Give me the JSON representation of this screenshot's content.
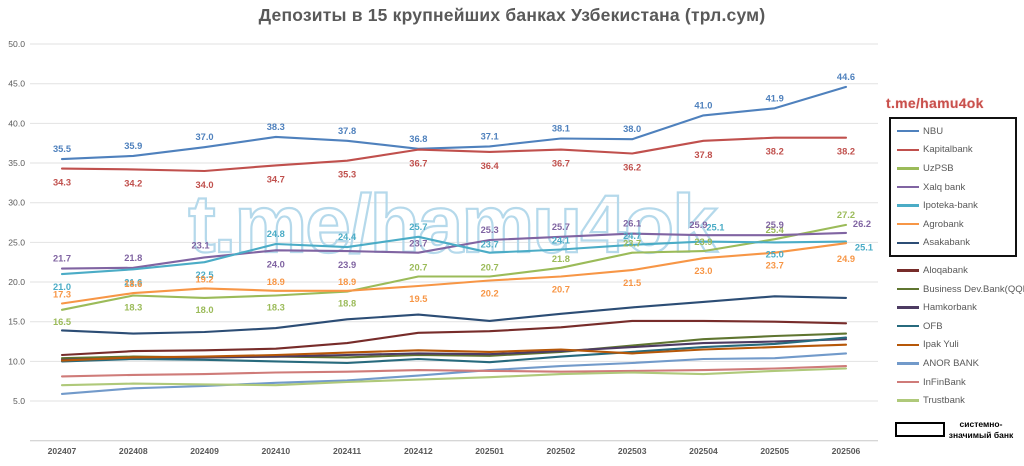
{
  "title": "Депозиты в 15 крупнейших банках Узбекистана (трл.сум)",
  "watermark_center": "t.me/hamu4ok",
  "watermark_corner": "t.me/hamu4ok",
  "systemic_note": {
    "line1": "системно-",
    "line2": "значимый банк"
  },
  "chart_data": {
    "type": "line",
    "title": "Депозиты в 15 крупнейших банках Узбекистана (трл.сум)",
    "xlabel": "",
    "ylabel": "",
    "x_categories": [
      "202407",
      "202408",
      "202409",
      "202410",
      "202411",
      "202412",
      "202501",
      "202502",
      "202503",
      "202504",
      "202505",
      "202506"
    ],
    "ylim": [
      0,
      50
    ],
    "y_ticks": [
      5.0,
      10.0,
      15.0,
      20.0,
      25.0,
      30.0,
      35.0,
      40.0,
      45.0,
      50.0
    ],
    "grid": "horizontal",
    "legend_position": "right",
    "systemic_group_label": "системно-значимый банк",
    "series": [
      {
        "name": "NBU",
        "color": "#4F81BD",
        "systemic": true,
        "labeled": true,
        "values": [
          35.5,
          35.9,
          37.0,
          38.3,
          37.8,
          36.8,
          37.1,
          38.1,
          38.0,
          41.0,
          41.9,
          44.6
        ],
        "label_dy": [
          -7,
          -7,
          -7,
          -7,
          -7,
          -7,
          -7,
          -7,
          -7,
          -7,
          -7,
          -7
        ]
      },
      {
        "name": "Kapitalbank",
        "color": "#C0504D",
        "systemic": true,
        "labeled": true,
        "values": [
          34.3,
          34.2,
          34.0,
          34.7,
          35.3,
          36.7,
          36.4,
          36.7,
          36.2,
          37.8,
          38.2,
          38.2
        ],
        "label_dy": [
          14,
          14,
          14,
          14,
          14,
          14,
          14,
          14,
          14,
          14,
          14,
          14
        ]
      },
      {
        "name": "UzPSB",
        "color": "#9BBB59",
        "systemic": true,
        "labeled": true,
        "values": [
          16.5,
          18.3,
          18.0,
          18.3,
          18.8,
          20.7,
          20.7,
          21.8,
          23.7,
          23.9,
          25.4,
          27.2
        ],
        "label_dy": [
          12,
          12,
          12,
          12,
          12,
          -6,
          -6,
          -6,
          -6,
          -6,
          -6,
          -7
        ]
      },
      {
        "name": "Xalq bank",
        "color": "#8064A2",
        "systemic": true,
        "labeled": true,
        "values": [
          21.7,
          21.8,
          23.1,
          24.0,
          23.9,
          23.7,
          25.3,
          25.7,
          26.1,
          25.9,
          25.9,
          26.2
        ],
        "label_dy": [
          -7,
          -7,
          -9,
          14,
          14,
          -6,
          -7,
          -7,
          -7,
          -7,
          -7,
          -6
        ],
        "label_dx": [
          0,
          0,
          -4,
          0,
          0,
          0,
          0,
          0,
          0,
          -5,
          0,
          16
        ]
      },
      {
        "name": "Ipoteka-bank",
        "color": "#4BACC6",
        "systemic": true,
        "labeled": true,
        "values": [
          21.0,
          21.6,
          22.5,
          24.8,
          24.4,
          25.7,
          23.7,
          24.1,
          24.7,
          25.1,
          25.0,
          25.1
        ],
        "label_dy": [
          13,
          13,
          13,
          -7,
          -7,
          -7,
          -5,
          -6,
          -6,
          -11,
          12,
          6
        ],
        "label_dx": [
          0,
          0,
          0,
          0,
          0,
          0,
          0,
          0,
          0,
          12,
          0,
          18
        ]
      },
      {
        "name": "Agrobank",
        "color": "#F79646",
        "systemic": true,
        "labeled": true,
        "values": [
          17.3,
          18.6,
          19.2,
          18.9,
          18.9,
          19.5,
          20.2,
          20.7,
          21.5,
          23.0,
          23.7,
          24.9
        ],
        "label_dy": [
          -6,
          -6,
          -6,
          -6,
          -6,
          13,
          13,
          13,
          13,
          13,
          13,
          16
        ]
      },
      {
        "name": "Asakabank",
        "color": "#2C4D75",
        "systemic": true,
        "labeled": false,
        "values": [
          13.9,
          13.5,
          13.7,
          14.2,
          15.3,
          15.9,
          15.1,
          16.0,
          16.8,
          17.5,
          18.2,
          18.0
        ]
      },
      {
        "name": "Aloqabank",
        "color": "#772C2A",
        "systemic": false,
        "labeled": false,
        "values": [
          10.8,
          11.3,
          11.4,
          11.6,
          12.3,
          13.6,
          13.8,
          14.3,
          15.1,
          15.1,
          15.0,
          14.8
        ]
      },
      {
        "name": "Business Dev.Bank(QQB)",
        "color": "#5F7530",
        "systemic": false,
        "labeled": false,
        "values": [
          10.4,
          10.6,
          10.5,
          10.6,
          10.5,
          10.8,
          10.7,
          11.2,
          12.0,
          12.8,
          13.2,
          13.5
        ]
      },
      {
        "name": "Hamkorbank",
        "color": "#4D3B62",
        "systemic": false,
        "labeled": false,
        "values": [
          10.2,
          10.4,
          10.5,
          10.6,
          10.8,
          11.0,
          10.9,
          11.3,
          11.8,
          12.3,
          12.5,
          12.8
        ]
      },
      {
        "name": "OFB",
        "color": "#276A7D",
        "systemic": false,
        "labeled": false,
        "values": [
          10.0,
          10.3,
          10.2,
          10.0,
          9.8,
          10.3,
          9.9,
          10.6,
          11.2,
          11.8,
          12.2,
          13.0
        ]
      },
      {
        "name": "Ipak Yuli",
        "color": "#B65708",
        "systemic": false,
        "labeled": false,
        "values": [
          10.1,
          10.5,
          10.6,
          10.8,
          11.1,
          11.4,
          11.2,
          11.5,
          11.0,
          11.5,
          11.8,
          12.1
        ]
      },
      {
        "name": "ANOR BANK",
        "color": "#729ACA",
        "systemic": false,
        "labeled": false,
        "values": [
          5.9,
          6.6,
          6.9,
          7.3,
          7.6,
          8.2,
          8.9,
          9.4,
          9.8,
          10.3,
          10.4,
          11.0
        ]
      },
      {
        "name": "InFinBank",
        "color": "#CF7B79",
        "systemic": false,
        "labeled": false,
        "values": [
          8.1,
          8.3,
          8.4,
          8.6,
          8.7,
          8.9,
          8.8,
          8.7,
          8.8,
          8.9,
          9.1,
          9.4
        ]
      },
      {
        "name": "Trustbank",
        "color": "#AFC97A",
        "systemic": false,
        "labeled": false,
        "values": [
          7.0,
          7.2,
          7.1,
          7.0,
          7.4,
          7.7,
          8.0,
          8.4,
          8.6,
          8.4,
          8.8,
          9.1
        ]
      }
    ]
  }
}
